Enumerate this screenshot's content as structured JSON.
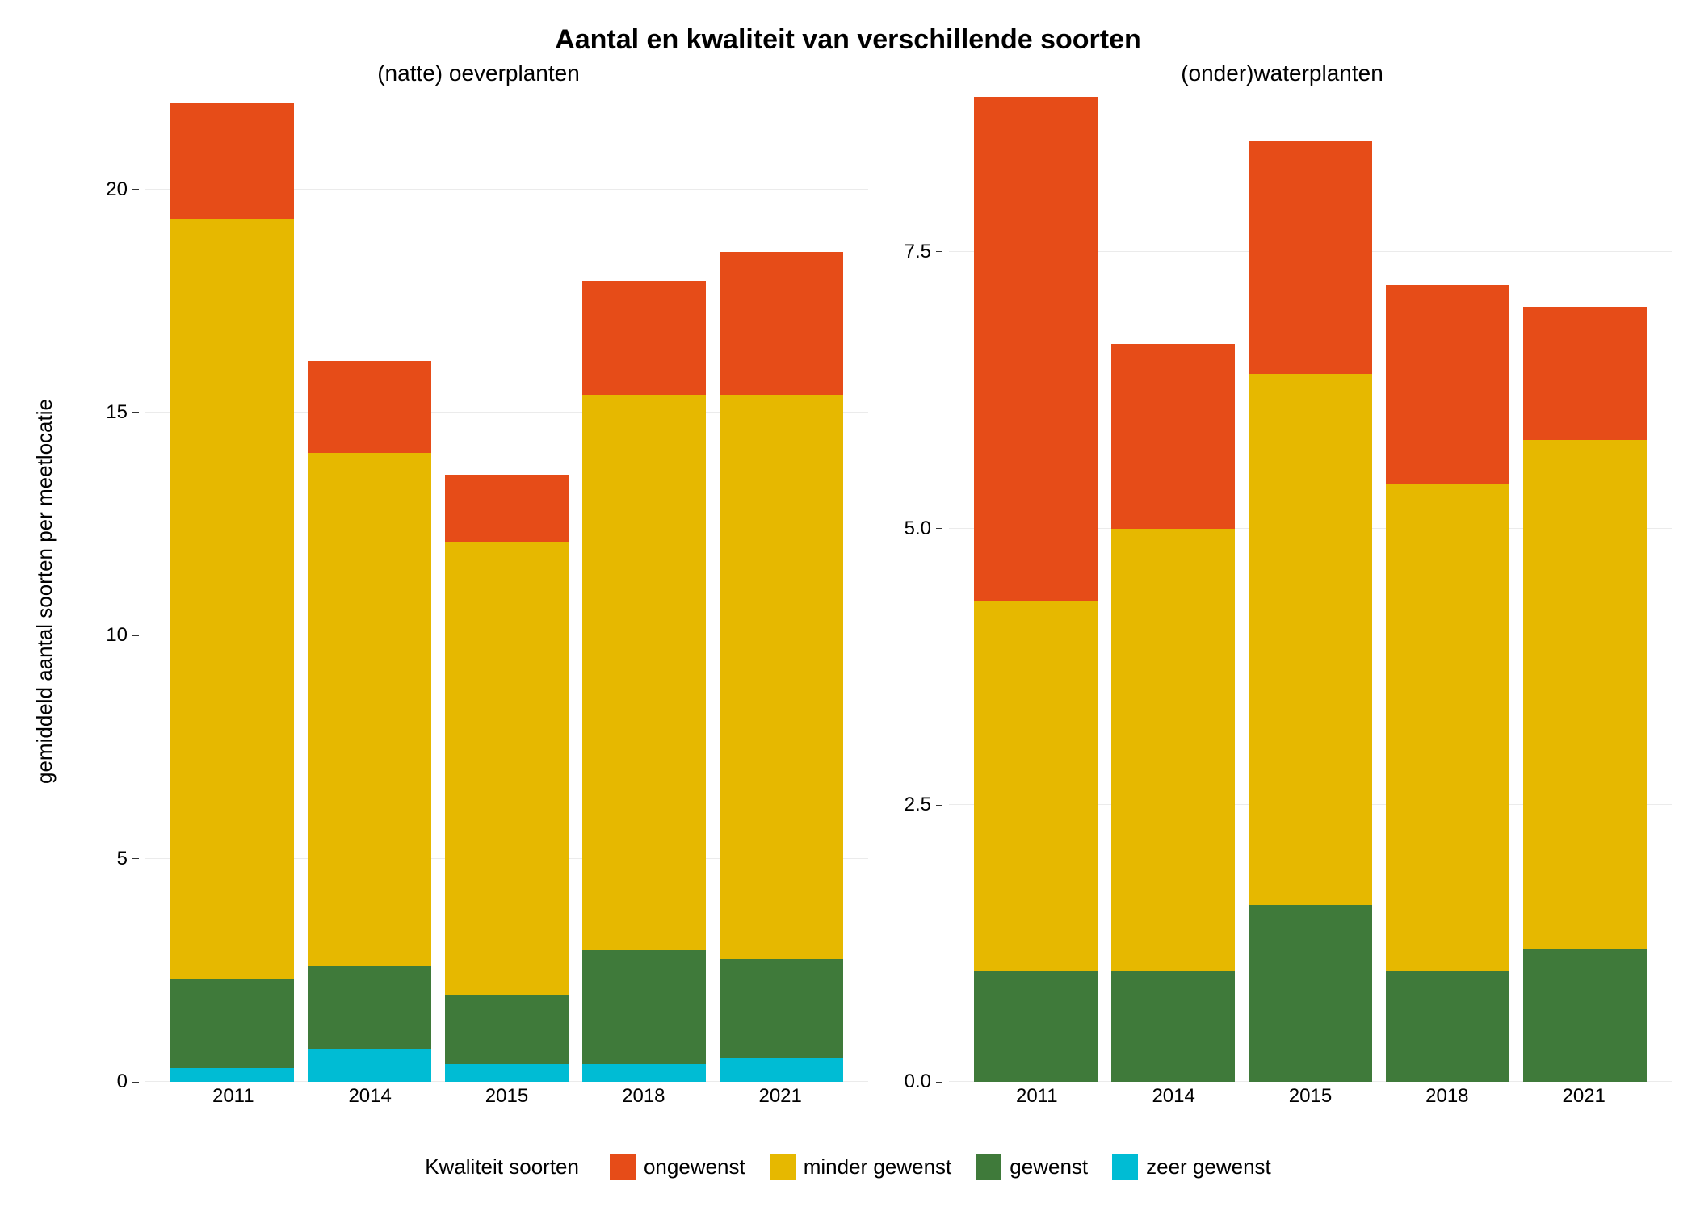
{
  "title": "Aantal en kwaliteit van verschillende soorten",
  "title_fontsize": 34,
  "y_axis_label": "gemiddeld aantal soorten per meetlocatie",
  "axis_label_fontsize": 26,
  "tick_fontsize": 24,
  "panel_title_fontsize": 28,
  "legend_fontsize": 26,
  "background_color": "#ffffff",
  "grid_color": "#ebebeb",
  "text_color": "#000000",
  "legend": {
    "title": "Kwaliteit soorten",
    "items": [
      {
        "key": "ongewenst",
        "label": "ongewenst",
        "color": "#e64c18"
      },
      {
        "key": "minder_gewenst",
        "label": "minder gewenst",
        "color": "#e6b800"
      },
      {
        "key": "gewenst",
        "label": "gewenst",
        "color": "#3f7a3a"
      },
      {
        "key": "zeer_gewenst",
        "label": "zeer gewenst",
        "color": "#00bcd4"
      }
    ]
  },
  "panels": [
    {
      "title": "(natte) oeverplanten",
      "type": "stacked-bar",
      "ylim": [
        0,
        22.2
      ],
      "yticks": [
        0,
        5,
        10,
        15,
        20
      ],
      "ytick_labels": [
        "0",
        "5",
        "10",
        "15",
        "20"
      ],
      "categories": [
        "2011",
        "2014",
        "2015",
        "2018",
        "2021"
      ],
      "bar_width": 0.9,
      "series": [
        {
          "key": "zeer_gewenst",
          "values": [
            0.3,
            0.75,
            0.4,
            0.4,
            0.55
          ]
        },
        {
          "key": "gewenst",
          "values": [
            2.0,
            1.85,
            1.55,
            2.55,
            2.2
          ]
        },
        {
          "key": "minder_gewenst",
          "values": [
            17.05,
            11.5,
            10.15,
            12.45,
            12.65
          ]
        },
        {
          "key": "ongewenst",
          "values": [
            2.6,
            2.05,
            1.5,
            2.55,
            3.2
          ]
        }
      ]
    },
    {
      "title": "(onder)waterplanten",
      "type": "stacked-bar",
      "ylim": [
        0,
        8.95
      ],
      "yticks": [
        0.0,
        2.5,
        5.0,
        7.5
      ],
      "ytick_labels": [
        "0.0",
        "2.5",
        "5.0",
        "7.5"
      ],
      "categories": [
        "2011",
        "2014",
        "2015",
        "2018",
        "2021"
      ],
      "bar_width": 0.9,
      "series": [
        {
          "key": "zeer_gewenst",
          "values": [
            0.0,
            0.0,
            0.0,
            0.0,
            0.0
          ]
        },
        {
          "key": "gewenst",
          "values": [
            1.0,
            1.0,
            1.6,
            1.0,
            1.2
          ]
        },
        {
          "key": "minder_gewenst",
          "values": [
            3.35,
            4.0,
            4.8,
            4.4,
            4.6
          ]
        },
        {
          "key": "ongewenst",
          "values": [
            4.55,
            1.67,
            2.1,
            1.8,
            1.2
          ]
        }
      ]
    }
  ]
}
